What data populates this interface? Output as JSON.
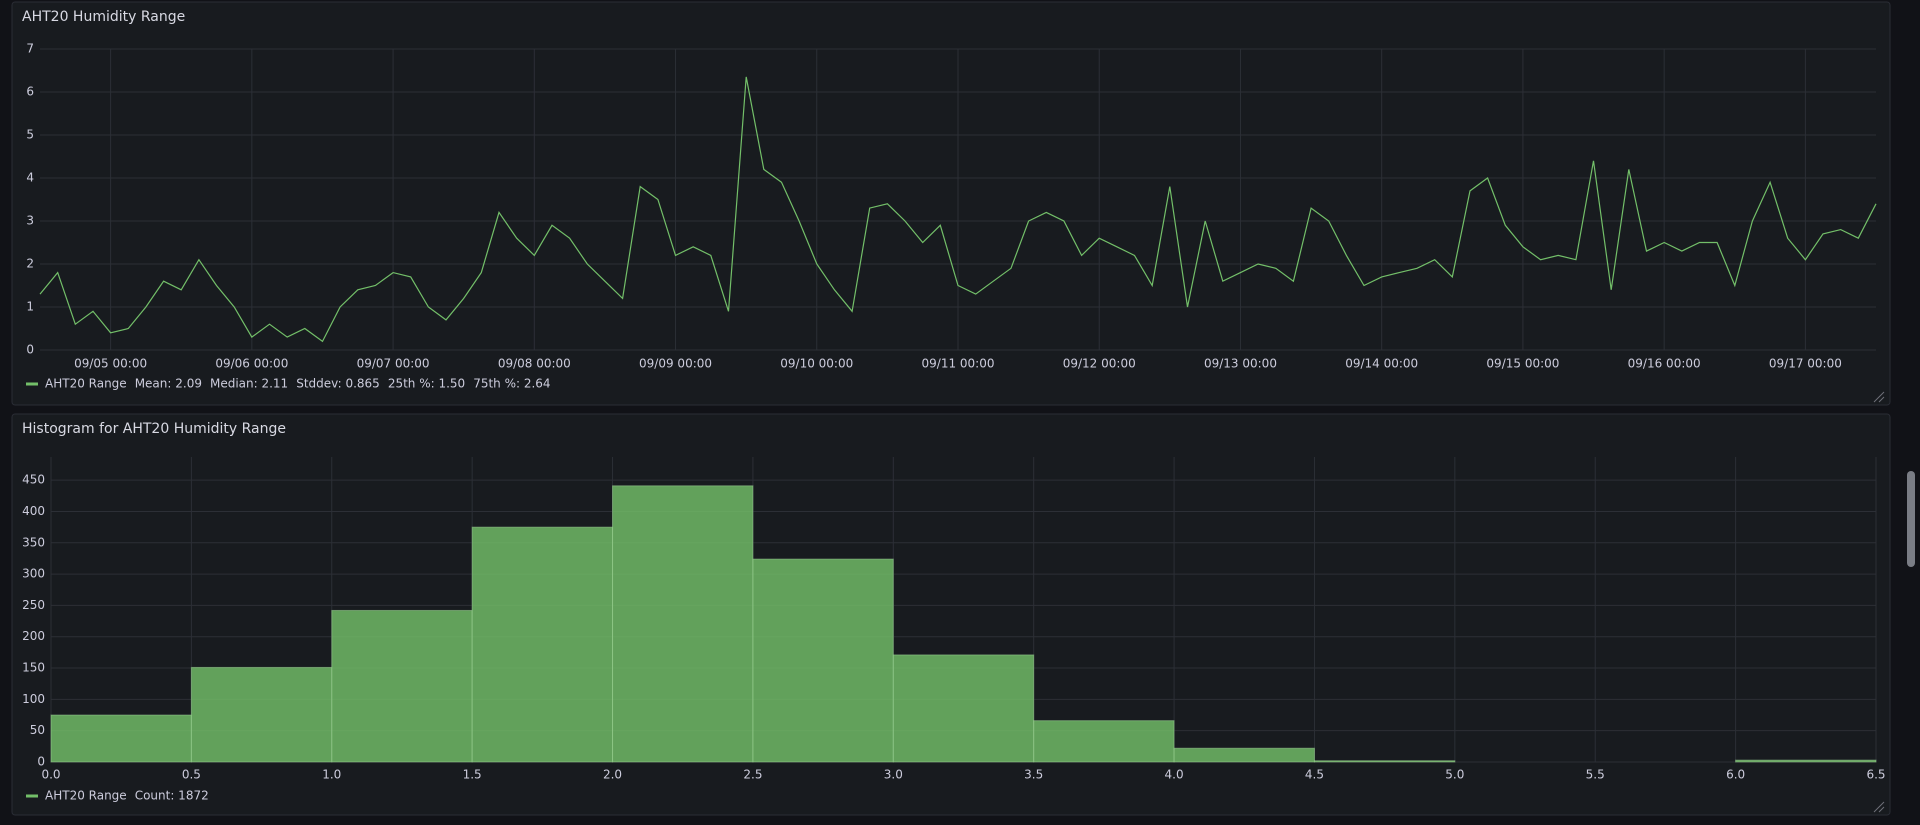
{
  "chart_data": [
    {
      "type": "line",
      "title": "AHT20 Humidity Range",
      "x": [
        "09/04 12:00",
        "09/04 15:00",
        "09/04 18:00",
        "09/04 21:00",
        "09/05 00:00",
        "09/05 03:00",
        "09/05 06:00",
        "09/05 09:00",
        "09/05 12:00",
        "09/05 15:00",
        "09/05 18:00",
        "09/05 21:00",
        "09/06 00:00",
        "09/06 03:00",
        "09/06 06:00",
        "09/06 09:00",
        "09/06 12:00",
        "09/06 15:00",
        "09/06 18:00",
        "09/06 21:00",
        "09/07 00:00",
        "09/07 03:00",
        "09/07 06:00",
        "09/07 09:00",
        "09/07 12:00",
        "09/07 15:00",
        "09/07 18:00",
        "09/07 21:00",
        "09/08 00:00",
        "09/08 03:00",
        "09/08 06:00",
        "09/08 09:00",
        "09/08 12:00",
        "09/08 15:00",
        "09/08 18:00",
        "09/08 21:00",
        "09/09 00:00",
        "09/09 03:00",
        "09/09 06:00",
        "09/09 09:00",
        "09/09 12:00",
        "09/09 15:00",
        "09/09 18:00",
        "09/09 21:00",
        "09/10 00:00",
        "09/10 03:00",
        "09/10 06:00",
        "09/10 09:00",
        "09/10 12:00",
        "09/10 15:00",
        "09/10 18:00",
        "09/10 21:00",
        "09/11 00:00",
        "09/11 03:00",
        "09/11 06:00",
        "09/11 09:00",
        "09/11 12:00",
        "09/11 15:00",
        "09/11 18:00",
        "09/11 21:00",
        "09/12 00:00",
        "09/12 03:00",
        "09/12 06:00",
        "09/12 09:00",
        "09/12 12:00",
        "09/12 15:00",
        "09/12 18:00",
        "09/12 21:00",
        "09/13 00:00",
        "09/13 03:00",
        "09/13 06:00",
        "09/13 09:00",
        "09/13 12:00",
        "09/13 15:00",
        "09/13 18:00",
        "09/13 21:00",
        "09/14 00:00",
        "09/14 03:00",
        "09/14 06:00",
        "09/14 09:00",
        "09/14 12:00",
        "09/14 15:00",
        "09/14 18:00",
        "09/14 21:00",
        "09/15 00:00",
        "09/15 03:00",
        "09/15 06:00",
        "09/15 09:00",
        "09/15 12:00",
        "09/15 15:00",
        "09/15 18:00",
        "09/15 21:00",
        "09/16 00:00",
        "09/16 03:00",
        "09/16 06:00",
        "09/16 09:00",
        "09/16 12:00",
        "09/16 15:00",
        "09/16 18:00",
        "09/16 21:00",
        "09/17 00:00",
        "09/17 03:00",
        "09/17 06:00",
        "09/17 09:00",
        "09/17 12:00"
      ],
      "series": [
        {
          "name": "AHT20 Range",
          "color": "#73bf69",
          "values": [
            1.3,
            1.8,
            0.6,
            0.9,
            0.4,
            0.5,
            1.0,
            1.6,
            1.4,
            2.1,
            1.5,
            1.0,
            0.3,
            0.6,
            0.3,
            0.5,
            0.2,
            1.0,
            1.4,
            1.5,
            1.8,
            1.7,
            1.0,
            0.7,
            1.2,
            1.8,
            3.2,
            2.6,
            2.2,
            2.9,
            2.6,
            2.0,
            1.6,
            1.2,
            3.8,
            3.5,
            2.2,
            2.4,
            2.2,
            0.9,
            6.35,
            4.2,
            3.9,
            3.0,
            2.0,
            1.4,
            0.9,
            3.3,
            3.4,
            3.0,
            2.5,
            2.9,
            1.5,
            1.3,
            1.6,
            1.9,
            3.0,
            3.2,
            3.0,
            2.2,
            2.6,
            2.4,
            2.2,
            1.5,
            3.8,
            1.0,
            3.0,
            1.6,
            1.8,
            2.0,
            1.9,
            1.6,
            3.3,
            3.0,
            2.2,
            1.5,
            1.7,
            1.8,
            1.9,
            2.1,
            1.7,
            3.7,
            4.0,
            2.9,
            2.4,
            2.1,
            2.2,
            2.1,
            4.4,
            1.4,
            4.2,
            2.3,
            2.5,
            2.3,
            2.5,
            2.5,
            1.5,
            3.0,
            3.9,
            2.6,
            2.1,
            2.7,
            2.8,
            2.6,
            3.4
          ]
        }
      ],
      "legend_stats": [
        "Mean: 2.09",
        "Median: 2.11",
        "Stddev: 0.865",
        "25th %: 1.50",
        "75th %: 2.64"
      ],
      "xlim": [
        "09/04 12:00",
        "09/17 12:00"
      ],
      "xticks": [
        "09/05 00:00",
        "09/06 00:00",
        "09/07 00:00",
        "09/08 00:00",
        "09/09 00:00",
        "09/10 00:00",
        "09/11 00:00",
        "09/12 00:00",
        "09/13 00:00",
        "09/14 00:00",
        "09/15 00:00",
        "09/16 00:00",
        "09/17 00:00"
      ],
      "ylim": [
        0,
        7
      ],
      "yticks": [
        0,
        1,
        2,
        3,
        4,
        5,
        6,
        7
      ],
      "grid": true
    },
    {
      "type": "histogram",
      "title": "Histogram for AHT20 Humidity Range",
      "name": "AHT20 Range",
      "color": "#73bf69",
      "bins": [
        0,
        0.5,
        1,
        1.5,
        2,
        2.5,
        3,
        3.5,
        4,
        4.5,
        5,
        5.5,
        6,
        6.5
      ],
      "counts": [
        75,
        151,
        242,
        375,
        441,
        324,
        171,
        66,
        22,
        2,
        0,
        0,
        3
      ],
      "legend_stats": [
        "Count: 1872"
      ],
      "xlim": [
        0,
        6.5
      ],
      "xticks": [
        {
          "value": 0,
          "label": "0.0"
        },
        {
          "value": 0.5,
          "label": "0.5"
        },
        {
          "value": 1,
          "label": "1.0"
        },
        {
          "value": 1.5,
          "label": "1.5"
        },
        {
          "value": 2,
          "label": "2.0"
        },
        {
          "value": 2.5,
          "label": "2.5"
        },
        {
          "value": 3,
          "label": "3.0"
        },
        {
          "value": 3.5,
          "label": "3.5"
        },
        {
          "value": 4,
          "label": "4.0"
        },
        {
          "value": 4.5,
          "label": "4.5"
        },
        {
          "value": 5,
          "label": "5.0"
        },
        {
          "value": 5.5,
          "label": "5.5"
        },
        {
          "value": 6,
          "label": "6.0"
        },
        {
          "value": 6.5,
          "label": "6.5"
        }
      ],
      "ylim": [
        0,
        487
      ],
      "yticks": [
        0,
        50,
        100,
        150,
        200,
        250,
        300,
        350,
        400,
        450
      ],
      "grid": true
    }
  ]
}
